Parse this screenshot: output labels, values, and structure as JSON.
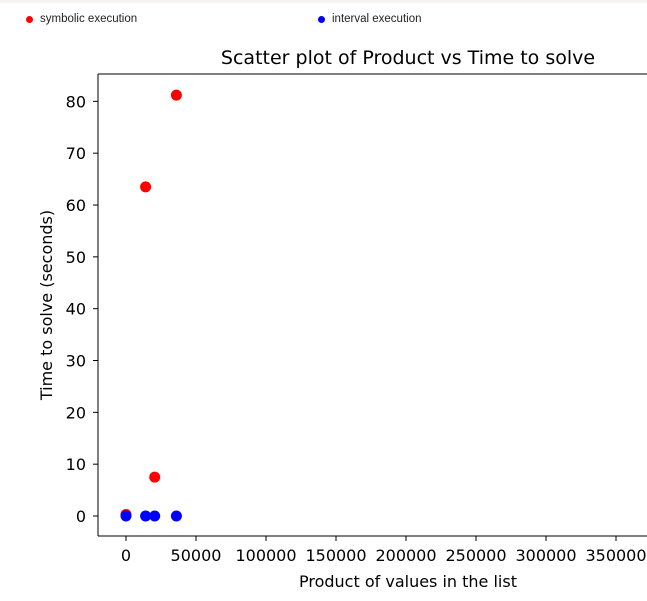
{
  "legend": [
    {
      "label": "symbolic execution",
      "color": "#ff0000"
    },
    {
      "label": "interval execution",
      "color": "#0000ff"
    }
  ],
  "chart_data": {
    "type": "scatter",
    "title": "Scatter plot of Product vs Time to solve",
    "xlabel": "Product of values in the list",
    "ylabel": "Time to solve (seconds)",
    "xlim": [
      -20000,
      370000
    ],
    "ylim": [
      -4,
      85
    ],
    "xticks": [
      0,
      50000,
      100000,
      150000,
      200000,
      250000,
      300000,
      350000
    ],
    "yticks": [
      0,
      10,
      20,
      30,
      40,
      50,
      60,
      70,
      80
    ],
    "series": [
      {
        "name": "symbolic execution",
        "color": "#ff0000",
        "x": [
          0,
          14000,
          20500,
          36000
        ],
        "y": [
          0.3,
          63.5,
          7.5,
          81.2
        ]
      },
      {
        "name": "interval execution",
        "color": "#0000ff",
        "x": [
          0,
          14000,
          20500,
          36000
        ],
        "y": [
          0,
          0,
          0,
          0
        ]
      }
    ]
  }
}
